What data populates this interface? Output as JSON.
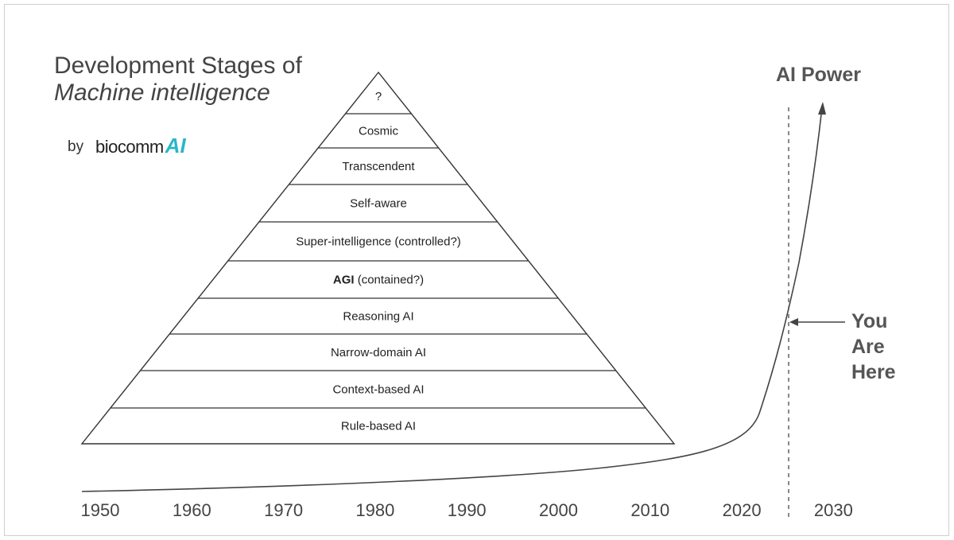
{
  "title": {
    "line1": "Development Stages of",
    "line2": "Machine intelligence"
  },
  "byline": {
    "by": "by",
    "logo_text": "biocomm",
    "logo_ai": "AI",
    "logo_color": "#2cb5c8"
  },
  "pyramid": {
    "stages": [
      {
        "label": "?",
        "bold_prefix": ""
      },
      {
        "label": "Cosmic",
        "bold_prefix": ""
      },
      {
        "label": "Transcendent",
        "bold_prefix": ""
      },
      {
        "label": "Self-aware",
        "bold_prefix": ""
      },
      {
        "label": "Super-intelligence (controlled?)",
        "bold_prefix": ""
      },
      {
        "label": " (contained?)",
        "bold_prefix": "AGI"
      },
      {
        "label": "Reasoning AI",
        "bold_prefix": ""
      },
      {
        "label": "Narrow-domain AI",
        "bold_prefix": ""
      },
      {
        "label": "Context-based AI",
        "bold_prefix": ""
      },
      {
        "label": "Rule-based AI",
        "bold_prefix": ""
      }
    ]
  },
  "curve": {
    "label": "AI Power",
    "years": [
      "1950",
      "1960",
      "1970",
      "1980",
      "1990",
      "2000",
      "2010",
      "2020",
      "2030"
    ]
  },
  "marker": {
    "lines": [
      "You",
      "Are",
      "Here"
    ]
  }
}
